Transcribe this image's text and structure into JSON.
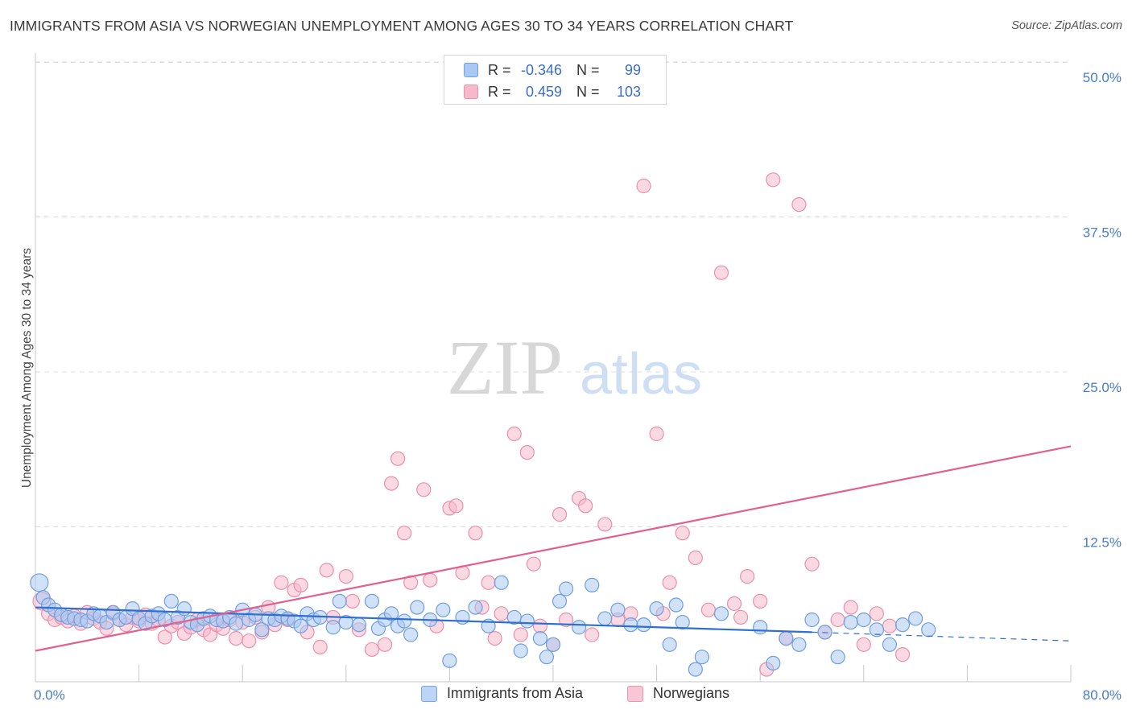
{
  "header": {
    "title": "IMMIGRANTS FROM ASIA VS NORWEGIAN UNEMPLOYMENT AMONG AGES 30 TO 34 YEARS CORRELATION CHART",
    "source": "Source: ZipAtlas.com"
  },
  "watermark": {
    "zip": "ZIP",
    "atlas": "atlas"
  },
  "legend": {
    "rows": [
      {
        "r_label": "R =",
        "r_value": "-0.346",
        "n_label": "N =",
        "n_value": "99"
      },
      {
        "r_label": "R =",
        "r_value": "0.459",
        "n_label": "N =",
        "n_value": "103"
      }
    ]
  },
  "colors": {
    "blue_fill": "#a9c8f2",
    "blue_stroke": "#6f9fe0",
    "blue_line": "#2f6fd0",
    "pink_fill": "#f6b9cc",
    "pink_stroke": "#ec8fab",
    "pink_line": "#e0608f",
    "tick_text": "#4a7cc7",
    "grid": "#dddddd"
  },
  "chart_data": {
    "type": "scatter",
    "title": "IMMIGRANTS FROM ASIA VS NORWEGIAN UNEMPLOYMENT AMONG AGES 30 TO 34 YEARS CORRELATION CHART",
    "xlabel": "",
    "ylabel": "Unemployment Among Ages 30 to 34 years",
    "xlim": [
      0,
      80
    ],
    "ylim": [
      0,
      50
    ],
    "x_tick_labels": [
      "0.0%",
      "80.0%"
    ],
    "y_ticks": [
      12.5,
      25.0,
      37.5,
      50.0
    ],
    "y_tick_labels": [
      "12.5%",
      "25.0%",
      "37.5%",
      "50.0%"
    ],
    "grid": true,
    "legend_position": "bottom",
    "series": [
      {
        "name": "Immigrants from Asia",
        "color": "blue",
        "r": -0.346,
        "n": 99,
        "trend": {
          "x0": 0,
          "y0": 6.0,
          "x1": 60,
          "y1": 4.0,
          "dashed_to_x": 80,
          "dashed_to_y": 3.3
        },
        "points": [
          [
            0.3,
            8.0
          ],
          [
            0.6,
            6.8
          ],
          [
            1.0,
            6.2
          ],
          [
            1.5,
            5.8
          ],
          [
            2.0,
            5.4
          ],
          [
            2.5,
            5.2
          ],
          [
            3.0,
            5.1
          ],
          [
            3.5,
            5.0
          ],
          [
            4.0,
            4.9
          ],
          [
            4.5,
            5.5
          ],
          [
            5.0,
            5.3
          ],
          [
            5.5,
            4.8
          ],
          [
            6.0,
            5.6
          ],
          [
            6.5,
            5.0
          ],
          [
            7.0,
            5.2
          ],
          [
            7.5,
            5.9
          ],
          [
            8.0,
            5.1
          ],
          [
            8.5,
            4.7
          ],
          [
            9.0,
            5.3
          ],
          [
            9.5,
            5.5
          ],
          [
            10.0,
            5.0
          ],
          [
            10.5,
            6.5
          ],
          [
            11.0,
            5.2
          ],
          [
            11.5,
            5.9
          ],
          [
            12.0,
            4.8
          ],
          [
            12.5,
            4.6
          ],
          [
            13.0,
            5.1
          ],
          [
            13.5,
            5.3
          ],
          [
            14.0,
            5.0
          ],
          [
            14.5,
            4.9
          ],
          [
            15.0,
            5.2
          ],
          [
            15.5,
            4.7
          ],
          [
            16.0,
            5.8
          ],
          [
            16.5,
            5.0
          ],
          [
            17.0,
            5.4
          ],
          [
            17.5,
            4.2
          ],
          [
            18.0,
            5.1
          ],
          [
            18.5,
            5.0
          ],
          [
            19.0,
            5.3
          ],
          [
            19.5,
            5.1
          ],
          [
            20.0,
            4.9
          ],
          [
            20.5,
            4.5
          ],
          [
            21.0,
            5.5
          ],
          [
            21.5,
            5.0
          ],
          [
            22.0,
            5.2
          ],
          [
            23.0,
            4.4
          ],
          [
            23.5,
            6.5
          ],
          [
            24.0,
            4.8
          ],
          [
            25.0,
            4.6
          ],
          [
            26.0,
            6.5
          ],
          [
            26.5,
            4.3
          ],
          [
            27.0,
            5.0
          ],
          [
            27.5,
            5.5
          ],
          [
            28.0,
            4.5
          ],
          [
            28.5,
            4.9
          ],
          [
            29.0,
            3.8
          ],
          [
            29.5,
            6.0
          ],
          [
            30.5,
            5.0
          ],
          [
            31.5,
            5.8
          ],
          [
            32.0,
            1.7
          ],
          [
            33.0,
            5.2
          ],
          [
            34.0,
            6.0
          ],
          [
            35.0,
            4.5
          ],
          [
            36.0,
            8.0
          ],
          [
            37.0,
            5.2
          ],
          [
            37.5,
            2.5
          ],
          [
            38.0,
            4.9
          ],
          [
            39.0,
            3.5
          ],
          [
            39.5,
            2.0
          ],
          [
            40.0,
            3.0
          ],
          [
            40.5,
            6.5
          ],
          [
            41.0,
            7.5
          ],
          [
            42.0,
            4.4
          ],
          [
            43.0,
            7.8
          ],
          [
            44.0,
            5.1
          ],
          [
            45.0,
            5.8
          ],
          [
            46.0,
            4.6
          ],
          [
            47.0,
            4.6
          ],
          [
            48.0,
            5.9
          ],
          [
            49.0,
            3.0
          ],
          [
            49.5,
            6.2
          ],
          [
            50.0,
            4.8
          ],
          [
            51.0,
            1.0
          ],
          [
            51.5,
            2.0
          ],
          [
            53.0,
            5.5
          ],
          [
            56.0,
            4.4
          ],
          [
            57.0,
            1.5
          ],
          [
            58.0,
            3.5
          ],
          [
            59.0,
            3.0
          ],
          [
            60.0,
            5.0
          ],
          [
            61.0,
            4.0
          ],
          [
            62.0,
            2.0
          ],
          [
            63.0,
            4.8
          ],
          [
            64.0,
            5.0
          ],
          [
            65.0,
            4.2
          ],
          [
            66.0,
            3.0
          ],
          [
            67.0,
            4.6
          ],
          [
            68.0,
            5.1
          ],
          [
            69.0,
            4.2
          ]
        ]
      },
      {
        "name": "Norwegians",
        "color": "pink",
        "r": 0.459,
        "n": 103,
        "trend": {
          "x0": 0,
          "y0": 2.5,
          "x1": 80,
          "y1": 19.0
        },
        "points": [
          [
            0.5,
            6.5
          ],
          [
            1.0,
            5.5
          ],
          [
            1.5,
            5.0
          ],
          [
            2.0,
            5.2
          ],
          [
            2.5,
            4.9
          ],
          [
            3.0,
            5.3
          ],
          [
            3.5,
            4.7
          ],
          [
            4.0,
            5.6
          ],
          [
            4.5,
            5.1
          ],
          [
            5.0,
            4.8
          ],
          [
            5.5,
            4.3
          ],
          [
            6.0,
            5.5
          ],
          [
            6.5,
            5.0
          ],
          [
            7.0,
            4.6
          ],
          [
            7.5,
            5.2
          ],
          [
            8.0,
            4.9
          ],
          [
            8.5,
            5.4
          ],
          [
            9.0,
            4.7
          ],
          [
            9.5,
            5.0
          ],
          [
            10.0,
            3.6
          ],
          [
            10.5,
            4.5
          ],
          [
            11.0,
            4.8
          ],
          [
            11.5,
            3.9
          ],
          [
            12.0,
            4.4
          ],
          [
            12.5,
            5.0
          ],
          [
            13.0,
            4.2
          ],
          [
            13.5,
            3.8
          ],
          [
            14.0,
            4.6
          ],
          [
            14.5,
            4.3
          ],
          [
            15.0,
            5.0
          ],
          [
            15.5,
            3.5
          ],
          [
            16.0,
            4.8
          ],
          [
            16.5,
            3.3
          ],
          [
            17.0,
            5.2
          ],
          [
            17.5,
            4.0
          ],
          [
            18.0,
            6.0
          ],
          [
            18.5,
            4.6
          ],
          [
            19.0,
            8.0
          ],
          [
            19.5,
            5.0
          ],
          [
            20.0,
            7.4
          ],
          [
            20.5,
            7.8
          ],
          [
            21.0,
            4.0
          ],
          [
            22.0,
            2.8
          ],
          [
            22.5,
            9.0
          ],
          [
            23.0,
            5.2
          ],
          [
            24.0,
            8.5
          ],
          [
            24.5,
            6.5
          ],
          [
            25.0,
            4.2
          ],
          [
            26.0,
            2.6
          ],
          [
            27.0,
            3.0
          ],
          [
            27.5,
            16.0
          ],
          [
            28.0,
            18.0
          ],
          [
            28.5,
            12.0
          ],
          [
            29.0,
            8.0
          ],
          [
            30.0,
            15.5
          ],
          [
            30.5,
            8.2
          ],
          [
            31.0,
            4.5
          ],
          [
            32.0,
            14.0
          ],
          [
            32.5,
            14.2
          ],
          [
            33.0,
            8.8
          ],
          [
            34.0,
            12.0
          ],
          [
            34.5,
            6.0
          ],
          [
            35.0,
            8.0
          ],
          [
            35.5,
            3.5
          ],
          [
            36.0,
            5.5
          ],
          [
            37.0,
            20.0
          ],
          [
            37.5,
            3.8
          ],
          [
            38.0,
            18.5
          ],
          [
            38.5,
            9.5
          ],
          [
            39.0,
            4.5
          ],
          [
            40.0,
            3.0
          ],
          [
            40.5,
            13.5
          ],
          [
            41.0,
            5.0
          ],
          [
            42.0,
            14.8
          ],
          [
            42.5,
            14.2
          ],
          [
            43.0,
            3.8
          ],
          [
            44.0,
            12.7
          ],
          [
            45.0,
            5.0
          ],
          [
            46.0,
            5.5
          ],
          [
            47.0,
            40.0
          ],
          [
            48.0,
            20.0
          ],
          [
            48.5,
            5.5
          ],
          [
            49.0,
            8.0
          ],
          [
            50.0,
            12.0
          ],
          [
            51.0,
            10.0
          ],
          [
            52.0,
            5.8
          ],
          [
            53.0,
            33.0
          ],
          [
            54.0,
            6.3
          ],
          [
            54.5,
            5.2
          ],
          [
            55.0,
            8.5
          ],
          [
            56.0,
            6.5
          ],
          [
            56.5,
            1.0
          ],
          [
            57.0,
            40.5
          ],
          [
            58.0,
            3.5
          ],
          [
            59.0,
            38.5
          ],
          [
            60.0,
            9.5
          ],
          [
            61.0,
            4.0
          ],
          [
            62.0,
            5.0
          ],
          [
            63.0,
            6.0
          ],
          [
            64.0,
            3.0
          ],
          [
            65.0,
            5.5
          ],
          [
            66.0,
            4.5
          ],
          [
            67.0,
            2.2
          ]
        ]
      }
    ]
  },
  "bottom_legend": {
    "items": [
      {
        "label": "Immigrants from Asia"
      },
      {
        "label": "Norwegians"
      }
    ]
  }
}
